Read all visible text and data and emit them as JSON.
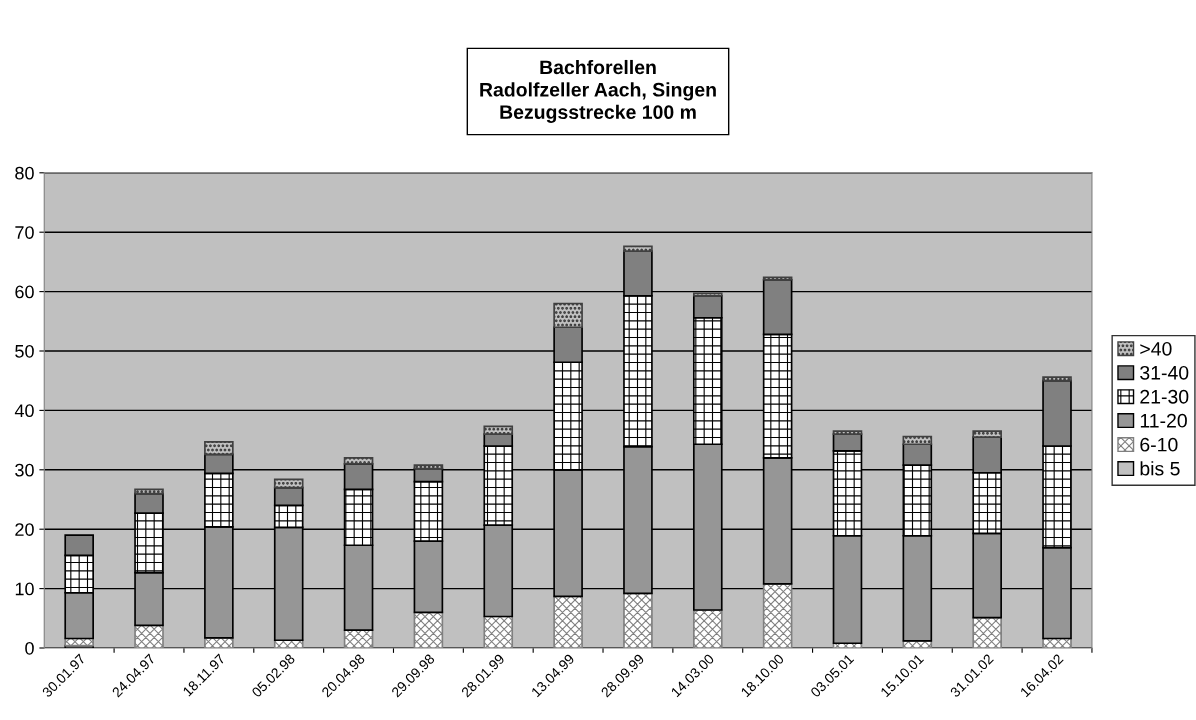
{
  "chart_data": {
    "type": "bar",
    "title": "Bachforellen\nRadolfzeller Aach, Singen\nBezugsstrecke 100 m",
    "categories": [
      "30.01.97",
      "24.04.97",
      "18.11.97",
      "05.02.98",
      "20.04.98",
      "29.09.98",
      "28.01.99",
      "13.04.99",
      "28.09.99",
      "14.03.00",
      "18.10.00",
      "03.05.01",
      "15.10.01",
      "31.01.02",
      "16.04.02"
    ],
    "stacked": true,
    "series": [
      {
        "name": "bis 5",
        "color": "#c0c0c0",
        "values": [
          0.4,
          0,
          0,
          0,
          0,
          0,
          0,
          0,
          0,
          0,
          0,
          0,
          0,
          0,
          0
        ]
      },
      {
        "name": "6-10",
        "color": "#808080",
        "values": [
          1.2,
          3.8,
          1.7,
          1.3,
          3.0,
          6.0,
          5.3,
          8.7,
          9.2,
          6.4,
          10.8,
          0.8,
          1.2,
          5.1,
          1.6
        ]
      },
      {
        "name": "11-20",
        "color": "#969696",
        "values": [
          7.7,
          8.9,
          18.7,
          19.0,
          14.3,
          12.0,
          15.4,
          21.3,
          24.7,
          27.9,
          21.2,
          18.1,
          17.7,
          14.2,
          15.3
        ]
      },
      {
        "name": "21-30",
        "color": "#000000",
        "values": [
          6.3,
          10.0,
          9.0,
          3.7,
          9.4,
          10.0,
          13.3,
          18.1,
          25.4,
          21.3,
          20.8,
          14.3,
          11.9,
          10.2,
          17.1
        ]
      },
      {
        "name": "31-40",
        "color": "#808080",
        "values": [
          3.4,
          3.3,
          3.2,
          3.0,
          4.3,
          2.2,
          2.0,
          5.9,
          7.5,
          3.7,
          9.2,
          2.8,
          3.5,
          6.0,
          11.0
        ]
      },
      {
        "name": ">40",
        "color": "#404040",
        "values": [
          0,
          0.7,
          2.1,
          1.4,
          1.0,
          0.6,
          1.3,
          4.0,
          0.8,
          0.4,
          0.4,
          0.5,
          1.3,
          1.0,
          0.6
        ]
      }
    ],
    "ylim": [
      0,
      80
    ],
    "yticks": [
      0,
      10,
      20,
      30,
      40,
      50,
      60,
      70,
      80
    ],
    "grid": "y",
    "legend": "right"
  }
}
